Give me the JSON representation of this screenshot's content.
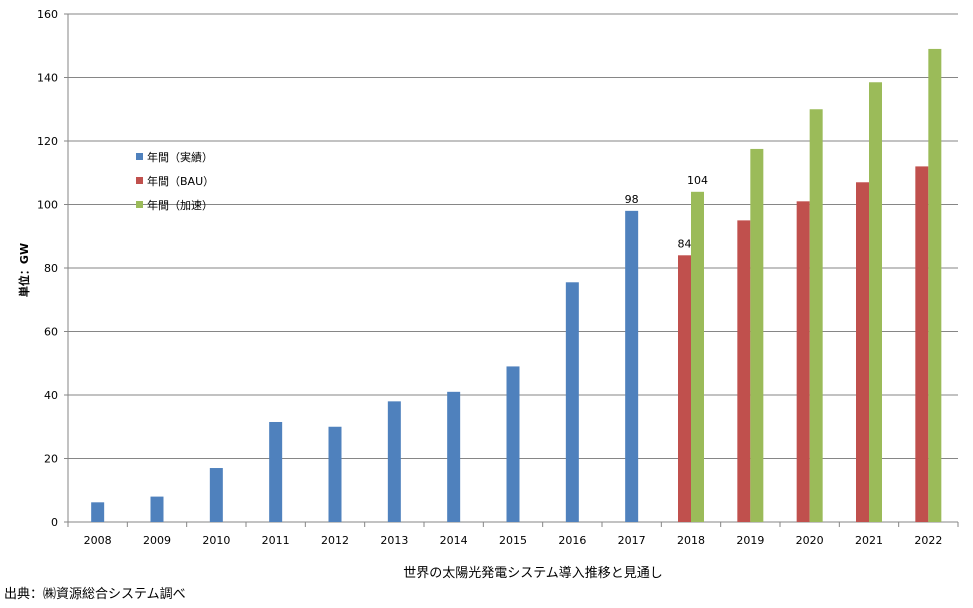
{
  "chart_data": {
    "type": "bar",
    "xlabel": "世界の太陽光発電システム導入推移と見通し",
    "ylabel": "単位：GW",
    "ylim": [
      0,
      160
    ],
    "yticks": [
      0,
      20,
      40,
      60,
      80,
      100,
      120,
      140,
      160
    ],
    "grid": true,
    "legend_position": "left-middle",
    "categories": [
      "2008",
      "2009",
      "2010",
      "2011",
      "2012",
      "2013",
      "2014",
      "2015",
      "2016",
      "2017",
      "2018",
      "2019",
      "2020",
      "2021",
      "2022"
    ],
    "series": [
      {
        "name": "年間（実績）",
        "color": "#4f81bd",
        "values": [
          6.2,
          8.0,
          17.0,
          31.5,
          30.0,
          38.0,
          41.0,
          49.0,
          75.5,
          98,
          null,
          null,
          null,
          null,
          null
        ]
      },
      {
        "name": "年間（BAU）",
        "color": "#c0504d",
        "values": [
          null,
          null,
          null,
          null,
          null,
          null,
          null,
          null,
          null,
          null,
          84,
          95,
          101,
          107,
          112
        ]
      },
      {
        "name": "年間（加速）",
        "color": "#9bbb59",
        "values": [
          null,
          null,
          null,
          null,
          null,
          null,
          null,
          null,
          null,
          null,
          104,
          117.5,
          130,
          138.5,
          149
        ]
      }
    ],
    "data_labels": [
      {
        "category": "2017",
        "series": "年間（実績）",
        "text": "98"
      },
      {
        "category": "2018",
        "series": "年間（BAU）",
        "text": "84"
      },
      {
        "category": "2018",
        "series": "年間（加速）",
        "text": "104"
      }
    ]
  },
  "source_note": "出典：㈱資源総合システム調べ"
}
